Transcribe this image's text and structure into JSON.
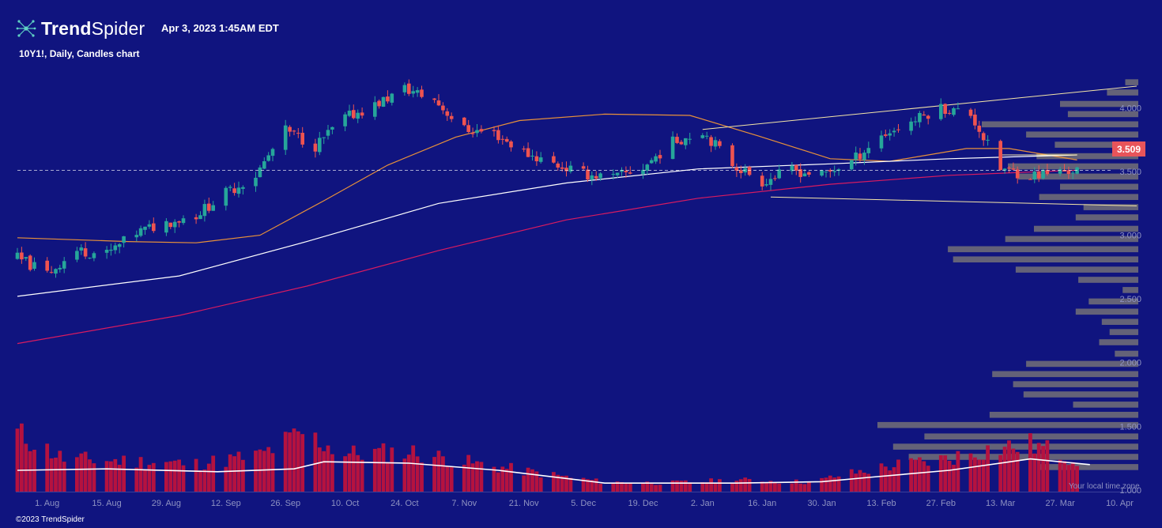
{
  "header": {
    "brand_bold": "Trend",
    "brand_light": "Spider",
    "timestamp": "Apr 3, 2023 1:45AM EDT",
    "chart_title": "10Y1!, Daily, Candles chart"
  },
  "footer": {
    "copyright": "©2023 TrendSpider",
    "timezone_note": "Your local time zone"
  },
  "colors": {
    "background": "#10147f",
    "up_candle": "#26a69a",
    "down_candle": "#ef5350",
    "volume_bar": "#b5123f",
    "volume_profile": "#6e6a78",
    "sma_short": "#e8913a",
    "sma_mid": "#ffffff",
    "sma_long": "#d81b60",
    "trend_line": "#f5e6a8",
    "price_tag": "#e8545a"
  },
  "current_price": {
    "label": "3.509",
    "value": 3.509
  },
  "chart_data": {
    "type": "candlestick",
    "title": "10Y1!, Daily, Candles chart",
    "x_axis": {
      "tick_labels": [
        "1. Aug",
        "15. Aug",
        "29. Aug",
        "12. Sep",
        "26. Sep",
        "10. Oct",
        "24. Oct",
        "7. Nov",
        "21. Nov",
        "5. Dec",
        "19. Dec",
        "2. Jan",
        "16. Jan",
        "30. Jan",
        "13. Feb",
        "27. Feb",
        "13. Mar",
        "27. Mar",
        "10. Apr"
      ],
      "range": [
        "2022-07-25",
        "2023-04-14"
      ]
    },
    "y_axis": {
      "tick_labels": [
        "1.000",
        "1.500",
        "2.000",
        "2.500",
        "3.000",
        "3.500",
        "4.000"
      ],
      "range": [
        0.95,
        4.3
      ]
    },
    "grid": false,
    "price_path": [
      [
        "2022-07-25",
        2.82
      ],
      [
        "2022-08-01",
        2.7
      ],
      [
        "2022-08-08",
        2.88
      ],
      [
        "2022-08-15",
        2.85
      ],
      [
        "2022-08-22",
        3.02
      ],
      [
        "2022-08-29",
        3.1
      ],
      [
        "2022-09-05",
        3.16
      ],
      [
        "2022-09-12",
        3.33
      ],
      [
        "2022-09-19",
        3.47
      ],
      [
        "2022-09-26",
        3.82
      ],
      [
        "2022-10-03",
        3.7
      ],
      [
        "2022-10-10",
        3.92
      ],
      [
        "2022-10-17",
        4.02
      ],
      [
        "2022-10-24",
        4.15
      ],
      [
        "2022-10-31",
        4.06
      ],
      [
        "2022-11-07",
        3.83
      ],
      [
        "2022-11-14",
        3.8
      ],
      [
        "2022-11-21",
        3.65
      ],
      [
        "2022-11-28",
        3.56
      ],
      [
        "2022-12-05",
        3.48
      ],
      [
        "2022-12-12",
        3.45
      ],
      [
        "2022-12-19",
        3.53
      ],
      [
        "2022-12-26",
        3.73
      ],
      [
        "2023-01-02",
        3.82
      ],
      [
        "2023-01-09",
        3.56
      ],
      [
        "2023-01-16",
        3.42
      ],
      [
        "2023-01-23",
        3.51
      ],
      [
        "2023-01-30",
        3.47
      ],
      [
        "2023-02-06",
        3.58
      ],
      [
        "2023-02-13",
        3.78
      ],
      [
        "2023-02-20",
        3.89
      ],
      [
        "2023-02-27",
        4.0
      ],
      [
        "2023-03-06",
        3.95
      ],
      [
        "2023-03-13",
        3.52
      ],
      [
        "2023-03-20",
        3.47
      ],
      [
        "2023-03-27",
        3.5
      ],
      [
        "2023-03-31",
        3.509
      ]
    ],
    "moving_averages": [
      {
        "color": "#e8913a",
        "points": [
          [
            "2022-07-25",
            2.98
          ],
          [
            "2022-08-20",
            2.95
          ],
          [
            "2022-09-05",
            2.94
          ],
          [
            "2022-09-20",
            3.0
          ],
          [
            "2022-10-05",
            3.27
          ],
          [
            "2022-10-20",
            3.55
          ],
          [
            "2022-11-05",
            3.77
          ],
          [
            "2022-11-20",
            3.9
          ],
          [
            "2022-12-10",
            3.95
          ],
          [
            "2022-12-30",
            3.94
          ],
          [
            "2023-01-15",
            3.78
          ],
          [
            "2023-02-01",
            3.6
          ],
          [
            "2023-02-15",
            3.58
          ],
          [
            "2023-03-05",
            3.68
          ],
          [
            "2023-03-15",
            3.68
          ],
          [
            "2023-03-31",
            3.59
          ]
        ]
      },
      {
        "color": "#ffffff",
        "points": [
          [
            "2022-07-25",
            2.52
          ],
          [
            "2022-09-01",
            2.68
          ],
          [
            "2022-10-01",
            2.95
          ],
          [
            "2022-11-01",
            3.25
          ],
          [
            "2022-12-01",
            3.41
          ],
          [
            "2023-01-01",
            3.52
          ],
          [
            "2023-02-01",
            3.56
          ],
          [
            "2023-03-01",
            3.6
          ],
          [
            "2023-03-31",
            3.63
          ]
        ]
      },
      {
        "color": "#d81b60",
        "points": [
          [
            "2022-07-25",
            2.15
          ],
          [
            "2022-09-01",
            2.37
          ],
          [
            "2022-10-01",
            2.6
          ],
          [
            "2022-11-01",
            2.88
          ],
          [
            "2022-12-01",
            3.12
          ],
          [
            "2023-01-01",
            3.29
          ],
          [
            "2023-02-01",
            3.4
          ],
          [
            "2023-03-01",
            3.47
          ],
          [
            "2023-03-31",
            3.51
          ]
        ]
      }
    ],
    "trend_lines": [
      [
        [
          "2023-01-02",
          3.83
        ],
        [
          "2023-04-14",
          4.17
        ]
      ],
      [
        [
          "2023-01-18",
          3.3
        ],
        [
          "2023-04-14",
          3.23
        ]
      ],
      [
        [
          "2023-03-13",
          3.63
        ],
        [
          "2023-03-31",
          3.63
        ]
      ]
    ],
    "volume_profile": [
      {
        "price": 4.2,
        "strength": 0.05
      },
      {
        "price": 4.12,
        "strength": 0.12
      },
      {
        "price": 4.03,
        "strength": 0.3
      },
      {
        "price": 3.95,
        "strength": 0.27
      },
      {
        "price": 3.87,
        "strength": 0.6
      },
      {
        "price": 3.79,
        "strength": 0.43
      },
      {
        "price": 3.71,
        "strength": 0.32
      },
      {
        "price": 3.62,
        "strength": 0.39
      },
      {
        "price": 3.54,
        "strength": 0.5
      },
      {
        "price": 3.46,
        "strength": 0.46
      },
      {
        "price": 3.38,
        "strength": 0.3
      },
      {
        "price": 3.3,
        "strength": 0.38
      },
      {
        "price": 3.22,
        "strength": 0.21
      },
      {
        "price": 3.14,
        "strength": 0.24
      },
      {
        "price": 3.05,
        "strength": 0.4
      },
      {
        "price": 2.97,
        "strength": 0.51
      },
      {
        "price": 2.89,
        "strength": 0.73
      },
      {
        "price": 2.81,
        "strength": 0.71
      },
      {
        "price": 2.73,
        "strength": 0.47
      },
      {
        "price": 2.65,
        "strength": 0.23
      },
      {
        "price": 2.57,
        "strength": 0.06
      },
      {
        "price": 2.48,
        "strength": 0.19
      },
      {
        "price": 2.4,
        "strength": 0.24
      },
      {
        "price": 2.32,
        "strength": 0.14
      },
      {
        "price": 2.24,
        "strength": 0.11
      },
      {
        "price": 2.16,
        "strength": 0.15
      },
      {
        "price": 2.07,
        "strength": 0.09
      },
      {
        "price": 1.99,
        "strength": 0.43
      },
      {
        "price": 1.91,
        "strength": 0.56
      },
      {
        "price": 1.83,
        "strength": 0.48
      },
      {
        "price": 1.75,
        "strength": 0.44
      },
      {
        "price": 1.67,
        "strength": 0.25
      },
      {
        "price": 1.59,
        "strength": 0.57
      },
      {
        "price": 1.51,
        "strength": 1.0
      },
      {
        "price": 1.42,
        "strength": 0.82
      },
      {
        "price": 1.34,
        "strength": 0.94
      },
      {
        "price": 1.26,
        "strength": 0.88
      },
      {
        "price": 1.18,
        "strength": 0.38
      }
    ],
    "volume_path": [
      [
        "2022-07-25",
        0.8
      ],
      [
        "2022-08-05",
        0.45
      ],
      [
        "2022-08-20",
        0.42
      ],
      [
        "2022-09-05",
        0.38
      ],
      [
        "2022-09-20",
        0.5
      ],
      [
        "2022-09-30",
        0.8
      ],
      [
        "2022-10-10",
        0.52
      ],
      [
        "2022-10-25",
        0.55
      ],
      [
        "2022-11-10",
        0.38
      ],
      [
        "2022-11-25",
        0.25
      ],
      [
        "2022-12-10",
        0.13
      ],
      [
        "2022-12-25",
        0.12
      ],
      [
        "2023-01-10",
        0.16
      ],
      [
        "2023-01-28",
        0.13
      ],
      [
        "2023-02-03",
        0.22
      ],
      [
        "2023-02-15",
        0.35
      ],
      [
        "2023-02-28",
        0.45
      ],
      [
        "2023-03-10",
        0.58
      ],
      [
        "2023-03-20",
        0.65
      ],
      [
        "2023-03-31",
        0.45
      ]
    ],
    "volume_ma": [
      [
        "2022-07-25",
        0.3
      ],
      [
        "2022-08-15",
        0.32
      ],
      [
        "2022-09-10",
        0.28
      ],
      [
        "2022-09-28",
        0.32
      ],
      [
        "2022-10-05",
        0.42
      ],
      [
        "2022-10-25",
        0.4
      ],
      [
        "2022-11-15",
        0.3
      ],
      [
        "2022-12-10",
        0.12
      ],
      [
        "2023-01-10",
        0.12
      ],
      [
        "2023-01-30",
        0.14
      ],
      [
        "2023-02-10",
        0.2
      ],
      [
        "2023-03-01",
        0.3
      ],
      [
        "2023-03-20",
        0.46
      ],
      [
        "2023-04-03",
        0.38
      ]
    ]
  }
}
